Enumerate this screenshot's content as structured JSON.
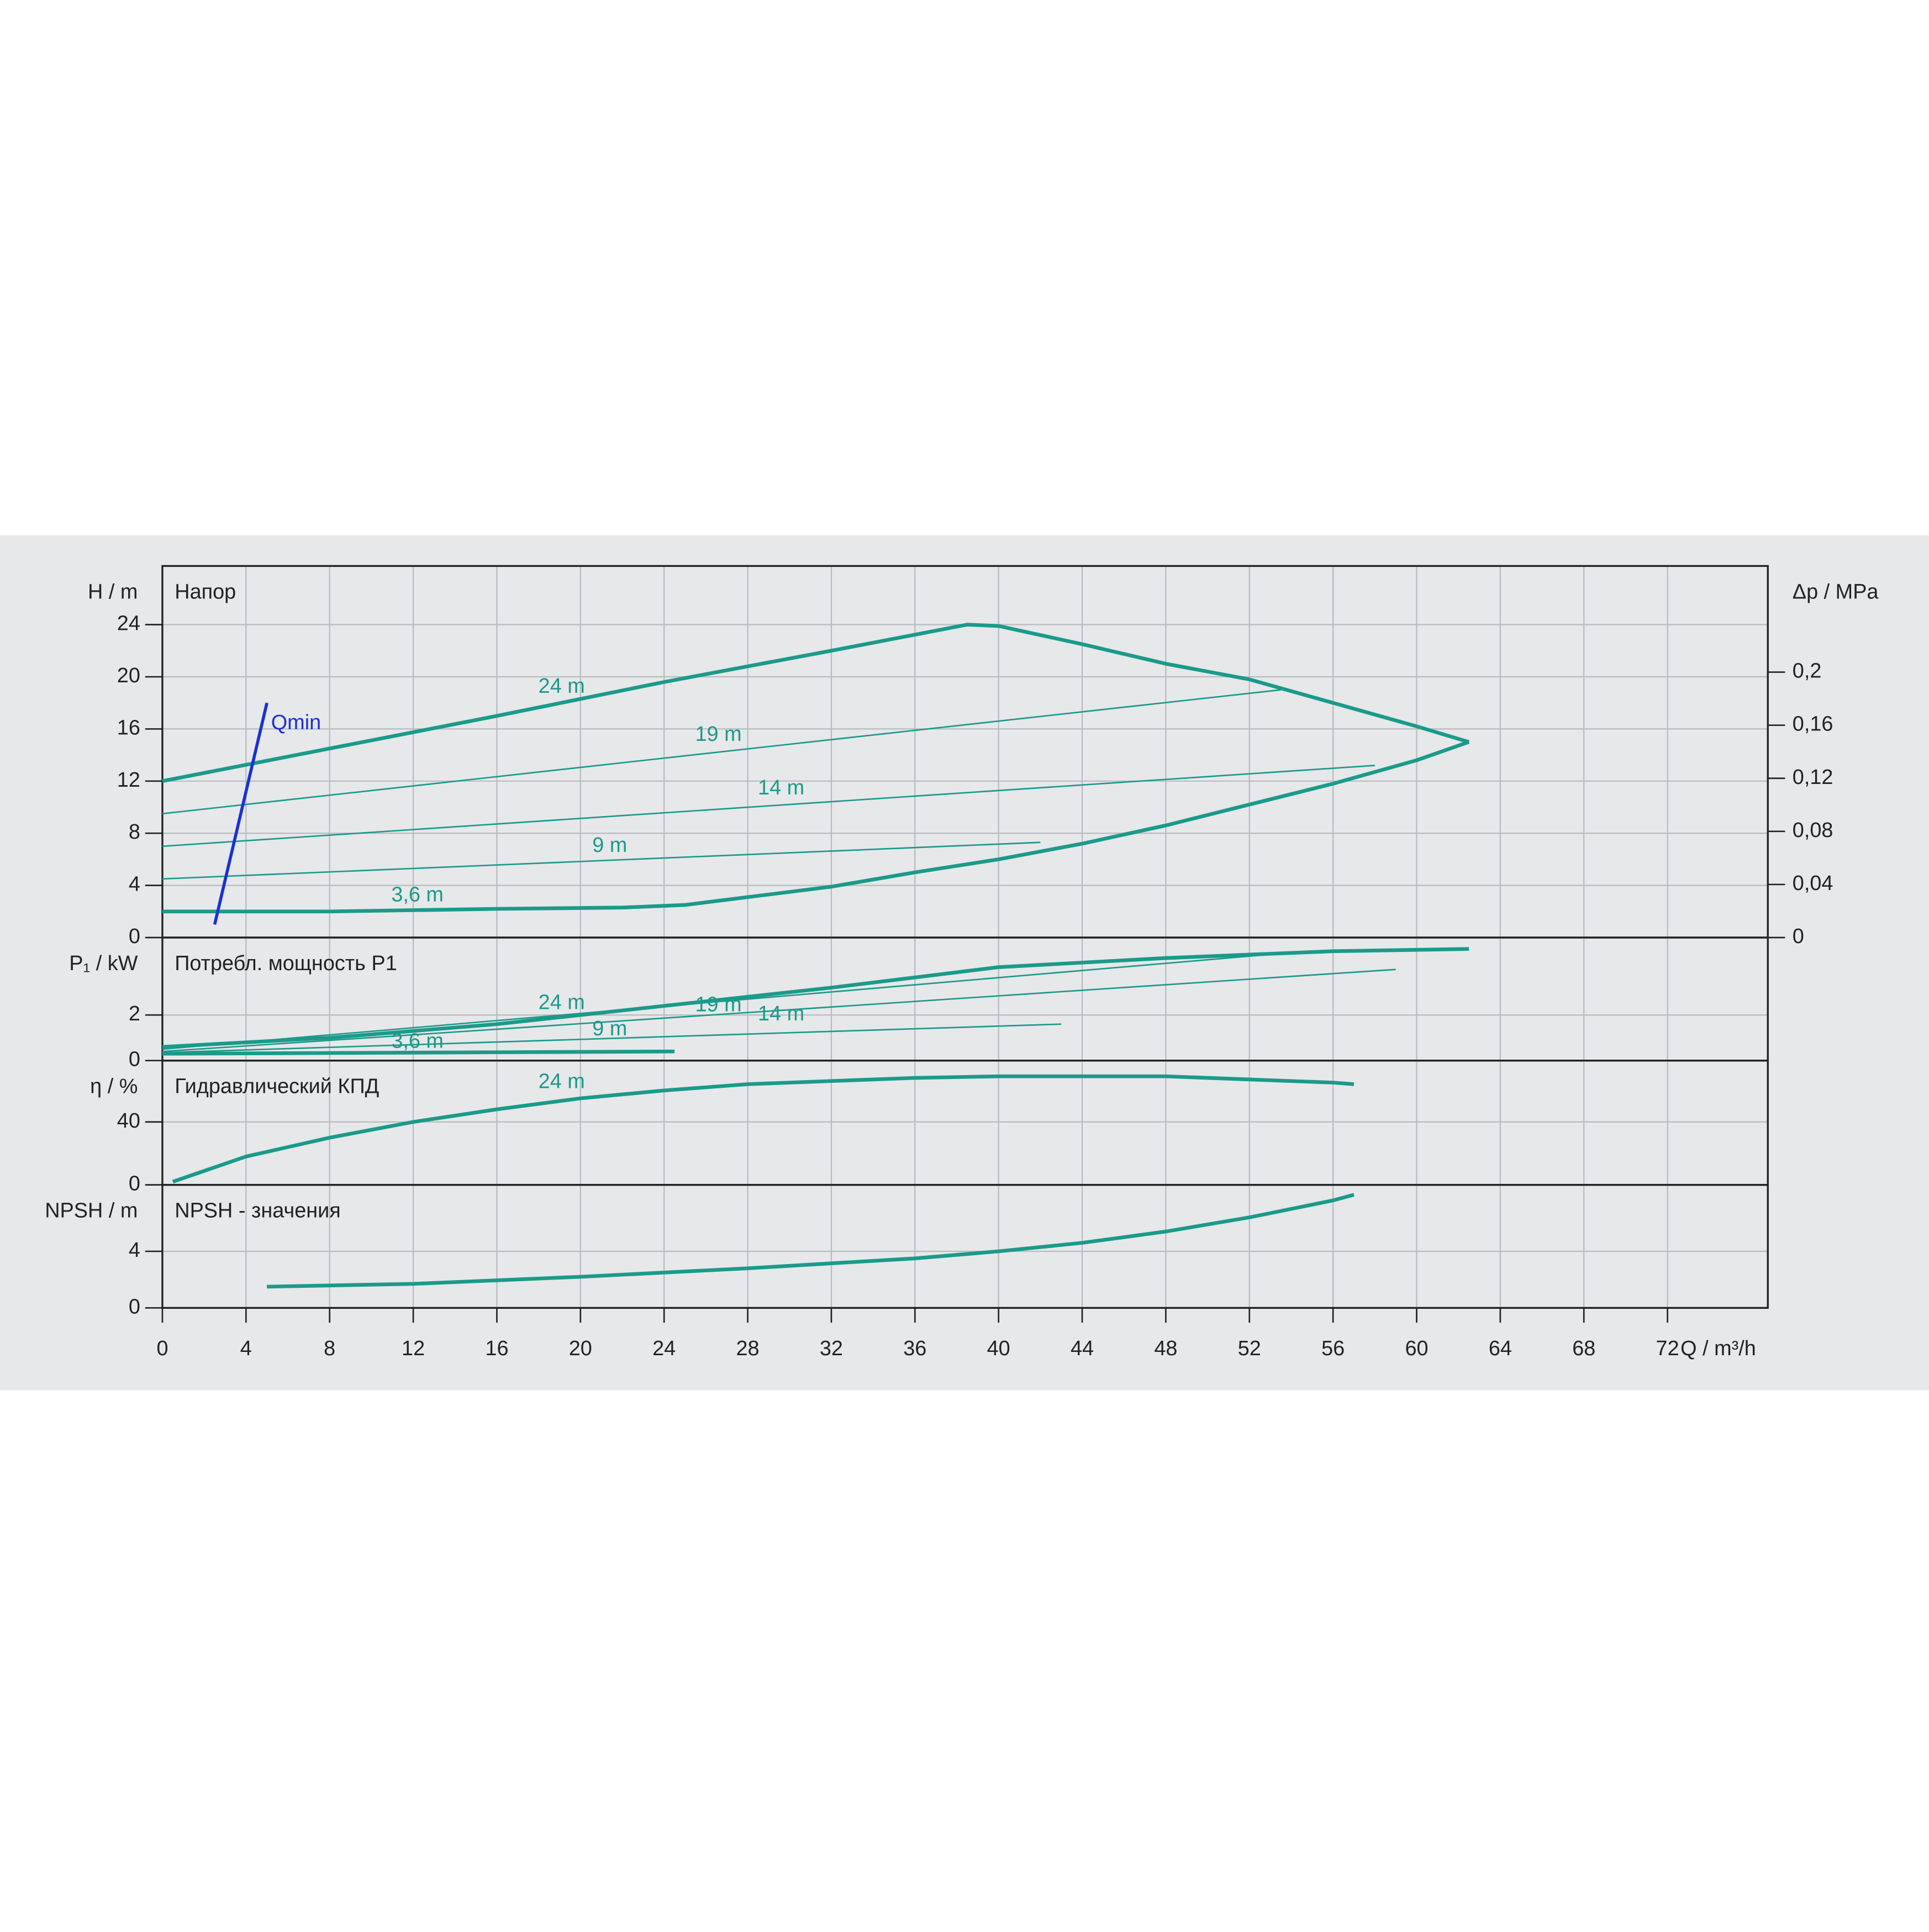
{
  "chart_data": [
    {
      "type": "line",
      "title": "Напор",
      "y_label": "H / m",
      "y2_label": "Δp / MPa",
      "ylim": [
        0,
        28.5
      ],
      "yticks": [
        0,
        4,
        8,
        12,
        16,
        20,
        24
      ],
      "y2lim": [
        0,
        0.28
      ],
      "y2ticks": [
        0,
        {
          "value": 0.04,
          "label": "0,04"
        },
        {
          "value": 0.08,
          "label": "0,08"
        },
        {
          "value": 0.12,
          "label": "0,12"
        },
        {
          "value": 0.16,
          "label": "0,16"
        },
        {
          "value": 0.2,
          "label": "0,2"
        }
      ],
      "grid": true,
      "series": [
        {
          "name": "24 m",
          "color": "#1b9a8a",
          "line_width": 3,
          "x": [
            0,
            8,
            16,
            24,
            32,
            38.5,
            40,
            44,
            48,
            52,
            56,
            60,
            62.5
          ],
          "values": [
            12,
            14.5,
            17,
            19.6,
            22,
            24,
            23.9,
            22.5,
            21,
            19.8,
            18,
            16.2,
            15
          ]
        },
        {
          "name": "19 m",
          "color": "#1b9a8a",
          "line_width": 1.2,
          "x": [
            0,
            53.5
          ],
          "values": [
            9.5,
            19
          ]
        },
        {
          "name": "14 m",
          "color": "#1b9a8a",
          "line_width": 1.2,
          "x": [
            0,
            58
          ],
          "values": [
            7,
            13.2
          ]
        },
        {
          "name": "9 m",
          "color": "#1b9a8a",
          "line_width": 1.2,
          "x": [
            0,
            42
          ],
          "values": [
            4.5,
            7.3
          ]
        },
        {
          "name": "3,6 m",
          "color": "#1b9a8a",
          "line_width": 3,
          "x": [
            0,
            8,
            16,
            22,
            25,
            28,
            32,
            36,
            40,
            44,
            48,
            52,
            56,
            60,
            62.5
          ],
          "values": [
            2,
            2,
            2.2,
            2.3,
            2.5,
            3.1,
            3.9,
            5,
            6,
            7.2,
            8.6,
            10.2,
            11.8,
            13.6,
            15
          ]
        },
        {
          "name": "Qmin",
          "color": "#1a30d8",
          "line_width": 2.5,
          "x": [
            2.5,
            5
          ],
          "values": [
            1,
            18
          ]
        }
      ]
    },
    {
      "type": "line",
      "title": "Потребл. мощность P1",
      "y_label": "P₁ / kW",
      "ylim": [
        0,
        5.4
      ],
      "yticks": [
        0,
        2
      ],
      "grid": true,
      "series": [
        {
          "name": "24 m",
          "color": "#1b9a8a",
          "line_width": 3,
          "x": [
            0,
            8,
            16,
            24,
            32,
            40,
            48,
            56,
            62.5
          ],
          "values": [
            0.6,
            1,
            1.6,
            2.4,
            3.2,
            4.1,
            4.5,
            4.8,
            4.9
          ]
        },
        {
          "name": "19 m",
          "color": "#1b9a8a",
          "line_width": 1.2,
          "x": [
            0,
            53.5
          ],
          "values": [
            0.5,
            4.7
          ]
        },
        {
          "name": "14 m",
          "color": "#1b9a8a",
          "line_width": 1.2,
          "x": [
            0,
            59
          ],
          "values": [
            0.4,
            4
          ]
        },
        {
          "name": "9 m",
          "color": "#1b9a8a",
          "line_width": 1.2,
          "x": [
            0,
            43
          ],
          "values": [
            0.35,
            1.6
          ]
        },
        {
          "name": "3,6 m",
          "color": "#1b9a8a",
          "line_width": 3,
          "x": [
            0,
            24.5
          ],
          "values": [
            0.3,
            0.4
          ]
        }
      ]
    },
    {
      "type": "line",
      "title": "Гидравлический КПД",
      "y_label": "η / %",
      "ylim": [
        0,
        79
      ],
      "yticks": [
        0,
        40
      ],
      "grid": true,
      "series": [
        {
          "name": "24 m",
          "color": "#1b9a8a",
          "line_width": 3,
          "x": [
            0.5,
            4,
            8,
            12,
            16,
            20,
            24,
            28,
            32,
            36,
            40,
            44,
            48,
            52,
            56,
            57
          ],
          "values": [
            2,
            18,
            30,
            40,
            48,
            55,
            60,
            64,
            66,
            68,
            69,
            69,
            69,
            67,
            65,
            64
          ]
        }
      ]
    },
    {
      "type": "line",
      "title": "NPSH - значения",
      "y_label": "NPSH / m",
      "x_label": "Q / m³/h",
      "ylim": [
        0,
        8.7
      ],
      "yticks": [
        0,
        4
      ],
      "grid": true,
      "xlim": [
        0,
        76.8
      ],
      "xticks": [
        0,
        4,
        8,
        12,
        16,
        20,
        24,
        28,
        32,
        36,
        40,
        44,
        48,
        52,
        56,
        60,
        64,
        68,
        72
      ],
      "series": [
        {
          "color": "#1b9a8a",
          "line_width": 3,
          "x": [
            5,
            12,
            20,
            28,
            36,
            40,
            44,
            48,
            52,
            56,
            57
          ],
          "values": [
            1.5,
            1.7,
            2.2,
            2.8,
            3.5,
            4,
            4.6,
            5.4,
            6.4,
            7.6,
            8
          ]
        }
      ]
    }
  ]
}
